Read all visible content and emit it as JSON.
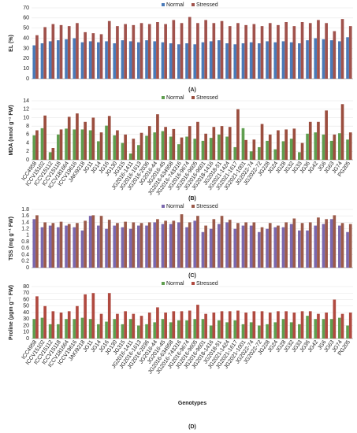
{
  "chart_data": [
    {
      "type": "bar",
      "y_label": "EL (%)",
      "panel_label": "(A)",
      "ylim": [
        0,
        70
      ],
      "yticks": [
        0,
        10,
        20,
        30,
        40,
        50,
        60,
        70
      ],
      "series": [
        {
          "name": "Normal",
          "color": "#4a7ab8",
          "values": [
            33,
            35,
            37,
            38,
            39,
            40,
            36,
            37,
            36,
            37,
            35,
            38,
            37,
            36,
            38,
            37,
            36,
            35,
            34,
            35,
            34,
            36,
            37,
            38,
            35,
            34,
            35,
            36,
            35,
            37,
            36,
            37,
            36,
            35,
            38,
            40,
            39,
            38,
            37,
            41
          ]
        },
        {
          "name": "Stressed",
          "color": "#a0524c",
          "values": [
            43,
            51,
            54,
            53,
            52,
            55,
            46,
            45,
            44,
            57,
            52,
            54,
            53,
            55,
            54,
            56,
            54,
            58,
            55,
            61,
            55,
            58,
            55,
            57,
            52,
            55,
            53,
            54,
            52,
            55,
            53,
            56,
            52,
            56,
            55,
            58,
            55,
            47,
            59,
            52
          ]
        }
      ]
    },
    {
      "type": "bar",
      "y_label": "MDA (nmol g⁻¹ FW)",
      "panel_label": "(B)",
      "ylim": [
        0,
        14
      ],
      "yticks": [
        0,
        2,
        4,
        6,
        8,
        10,
        12,
        14
      ],
      "categories": [
        "ICC4958",
        "ICCV15102",
        "ICCV15112",
        "ICCV15118",
        "ICCV181664",
        "ICCV19616",
        "JAKI9218",
        "JG11",
        "JG14",
        "JG16",
        "JG130",
        "JG315",
        "JG2016-1411",
        "JG2016-1613",
        "JG2016-2036",
        "JG2016-44",
        "JG2016-45",
        "JG2016-634958",
        "JG2016-743316",
        "JG2016-9674",
        "JG2016-9605",
        "JG2016-9601",
        "JG2018-1416",
        "JG2018-51",
        "JG2021-1424",
        "JG2021-1617",
        "JG2021-1001",
        "JG2022-74",
        "JG2022-72",
        "JG228",
        "JG24",
        "JG28",
        "JG32",
        "JG33",
        "JG36",
        "JG42",
        "JG6",
        "JG63",
        "JG74",
        "PG205"
      ],
      "series": [
        {
          "name": "Normal",
          "color": "#5f9e4f",
          "values": [
            5.8,
            7.5,
            1.8,
            6,
            7.4,
            7.2,
            7.2,
            7,
            4.4,
            8.1,
            5.8,
            4,
            1.5,
            3.5,
            5.7,
            6.5,
            6.8,
            5.5,
            3.7,
            5.5,
            5,
            4.5,
            5.2,
            6,
            5.5,
            3,
            7.5,
            2,
            3,
            4.5,
            2.5,
            4.4,
            5,
            1.8,
            6.2,
            6.5,
            6,
            4.5,
            6.3,
            4.8
          ]
        },
        {
          "name": "Stressed",
          "color": "#9b4e3f",
          "values": [
            7,
            10.5,
            2.8,
            7.2,
            10.2,
            11,
            9,
            10,
            6.5,
            10.4,
            7,
            6,
            5,
            6.4,
            8,
            10.8,
            7.8,
            7.3,
            5.3,
            8,
            9,
            6.2,
            7.8,
            8,
            7.8,
            12,
            4.7,
            4.8,
            8.5,
            6,
            7,
            7.2,
            7.4,
            4,
            9,
            9,
            11.7,
            6,
            13.2,
            6.5
          ]
        }
      ]
    },
    {
      "type": "bar",
      "y_label": "TSS (mg g⁻¹ FW)",
      "panel_label": "(C)",
      "ylim": [
        0,
        1.8
      ],
      "yticks": [
        0,
        0.2,
        0.4,
        0.6,
        0.8,
        1,
        1.2,
        1.4,
        1.6,
        1.8
      ],
      "series": [
        {
          "name": "Normal",
          "color": "#7b68ae",
          "values": [
            1.5,
            1.25,
            1.3,
            1.25,
            1.3,
            1.25,
            1.15,
            1.6,
            1.3,
            1.2,
            1.3,
            1.25,
            1.2,
            1.3,
            1.3,
            1.4,
            1.35,
            1.35,
            1.4,
            1.25,
            1.45,
            1.1,
            1.2,
            1.35,
            1.4,
            1.2,
            1.3,
            1.3,
            1.1,
            1.2,
            1.25,
            1.25,
            1.35,
            1.15,
            1.15,
            1.3,
            1.35,
            1.5,
            1.3,
            1.1
          ]
        },
        {
          "name": "Stressed",
          "color": "#9b5a4a",
          "values": [
            1.62,
            1.4,
            1.38,
            1.42,
            1.35,
            1.38,
            1.45,
            1.62,
            1.6,
            1.48,
            1.38,
            1.42,
            1.4,
            1.38,
            1.4,
            1.5,
            1.45,
            1.45,
            1.65,
            1.4,
            1.6,
            1.3,
            1.5,
            1.6,
            1.48,
            1.38,
            1.4,
            1.4,
            1.25,
            1.38,
            1.3,
            1.4,
            1.52,
            1.38,
            1.4,
            1.55,
            1.5,
            1.62,
            1.38,
            1.35
          ]
        }
      ]
    },
    {
      "type": "bar",
      "y_label": "Proline (µgm g⁻¹ FW)",
      "x_label": "Genotypes",
      "panel_label": "(D)",
      "ylim": [
        0,
        80
      ],
      "yticks": [
        0,
        10,
        20,
        30,
        40,
        50,
        60,
        70,
        80
      ],
      "categories": [
        "ICC4958",
        "ICCV15102",
        "ICCV15112",
        "ICCV15118",
        "ICCV181664",
        "ICCV19616",
        "JAKI9218",
        "JG11",
        "JG14",
        "JG16",
        "JG130",
        "JG315",
        "JG2016-1411",
        "JG2016-1613",
        "JG2016-2036",
        "JG2016-44",
        "JG2016-45",
        "JG2016-634958",
        "JG2016-743316",
        "JG2016-9674",
        "JG2016-9605",
        "JG2016-9601",
        "JG2018-1416",
        "JG2018-51",
        "JG2021-1424",
        "JG2021-1617",
        "JG2021-1001",
        "JG2022-74",
        "JG2022-72",
        "JG228",
        "JG24",
        "JG28",
        "JG32",
        "JG33",
        "JG36",
        "JG42",
        "JG6",
        "JG63",
        "JG74",
        "PG205"
      ],
      "series": [
        {
          "name": "Normal",
          "color": "#5f9e4f",
          "values": [
            30,
            32,
            22,
            22,
            30,
            30,
            32,
            30,
            22,
            26,
            30,
            22,
            30,
            20,
            22,
            25,
            30,
            25,
            28,
            28,
            30,
            30,
            20,
            28,
            25,
            28,
            22,
            25,
            20,
            22,
            25,
            30,
            25,
            22,
            35,
            30,
            30,
            30,
            32,
            20
          ]
        },
        {
          "name": "Stressed",
          "color": "#b04a40",
          "values": [
            65,
            50,
            42,
            40,
            42,
            50,
            68,
            70,
            38,
            70,
            38,
            42,
            38,
            35,
            40,
            48,
            40,
            42,
            42,
            43,
            52,
            38,
            40,
            42,
            42,
            43,
            40,
            42,
            42,
            40,
            42,
            42,
            40,
            42,
            42,
            38,
            40,
            60,
            38,
            40
          ]
        }
      ]
    }
  ]
}
